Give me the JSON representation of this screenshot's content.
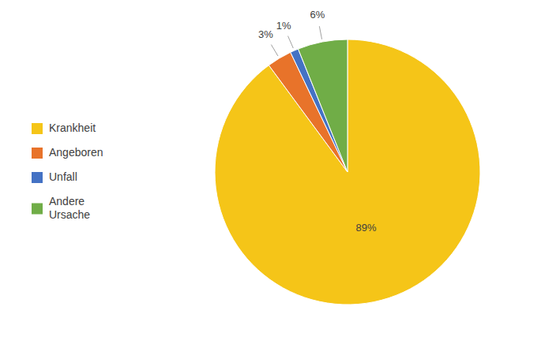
{
  "chart_data": {
    "type": "pie",
    "categories": [
      "Krankheit",
      "Angeboren",
      "Unfall",
      "Andere\nUrsache"
    ],
    "values": [
      89,
      3,
      1,
      6
    ],
    "value_labels": [
      "89%",
      "3%",
      "1%",
      "6%"
    ],
    "colors": [
      "#F5C518",
      "#E8732A",
      "#4472C4",
      "#70AD47"
    ],
    "data_labels": true,
    "legend": "left"
  }
}
